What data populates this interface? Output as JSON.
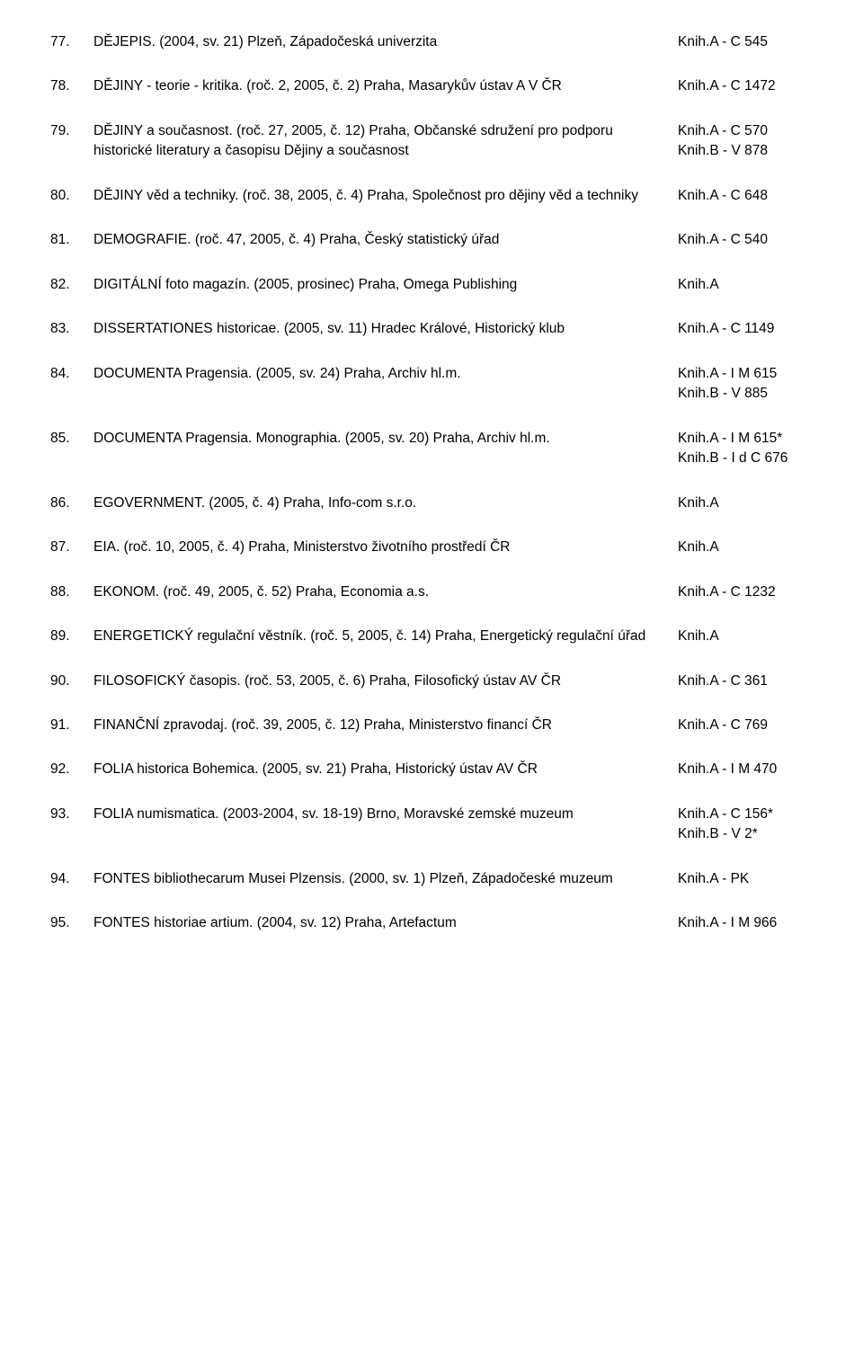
{
  "entries": [
    {
      "num": "77.",
      "desc": "DĚJEPIS. (2004, sv. 21) Plzeň, Západočeská univerzita",
      "loc": [
        "Knih.A - C 545"
      ]
    },
    {
      "num": "78.",
      "desc": "DĚJINY - teorie - kritika. (roč. 2, 2005, č. 2) Praha, Masarykův ústav A V ČR",
      "loc": [
        "Knih.A - C 1472"
      ]
    },
    {
      "num": "79.",
      "desc": "DĚJINY a současnost. (roč. 27, 2005, č. 12) Praha, Občanské sdružení pro podporu historické literatury a časopisu Dějiny a současnost",
      "loc": [
        "Knih.A - C 570",
        "Knih.B - V 878"
      ]
    },
    {
      "num": "80.",
      "desc": "DĚJINY věd a techniky. (roč. 38, 2005, č. 4) Praha, Společnost pro dějiny věd a techniky",
      "loc": [
        "Knih.A - C 648"
      ]
    },
    {
      "num": "81.",
      "desc": "DEMOGRAFIE. (roč. 47, 2005, č. 4) Praha, Český statistický úřad",
      "loc": [
        "Knih.A - C 540"
      ]
    },
    {
      "num": "82.",
      "desc": "DIGITÁLNÍ foto magazín. (2005, prosinec) Praha, Omega Publishing",
      "loc": [
        "Knih.A"
      ]
    },
    {
      "num": "83.",
      "desc": "DISSERTATIONES historicae. (2005, sv. 11) Hradec Králové, Historický klub",
      "loc": [
        "Knih.A - C 1149"
      ]
    },
    {
      "num": "84.",
      "desc": "DOCUMENTA Pragensia. (2005, sv. 24) Praha, Archiv hl.m.",
      "loc": [
        "Knih.A - I M 615",
        "Knih.B - V 885"
      ]
    },
    {
      "num": "85.",
      "desc": "DOCUMENTA Pragensia. Monographia. (2005, sv. 20) Praha, Archiv hl.m.",
      "loc": [
        "Knih.A - I M 615*",
        "Knih.B - I d C 676"
      ]
    },
    {
      "num": "86.",
      "desc": "EGOVERNMENT. (2005, č. 4) Praha, Info-com s.r.o.",
      "loc": [
        "Knih.A"
      ]
    },
    {
      "num": "87.",
      "desc": "EIA. (roč. 10, 2005, č. 4) Praha, Ministerstvo životního prostředí ČR",
      "loc": [
        "Knih.A"
      ]
    },
    {
      "num": "88.",
      "desc": "EKONOM. (roč. 49, 2005, č. 52) Praha, Economia a.s.",
      "loc": [
        "Knih.A - C 1232"
      ]
    },
    {
      "num": "89.",
      "desc": "ENERGETICKÝ regulační věstník. (roč. 5, 2005, č. 14) Praha, Energetický regulační úřad",
      "loc": [
        "Knih.A"
      ]
    },
    {
      "num": "90.",
      "desc": "FILOSOFICKÝ časopis. (roč. 53, 2005, č. 6) Praha, Filosofický ústav AV ČR",
      "loc": [
        "Knih.A - C 361"
      ]
    },
    {
      "num": "91.",
      "desc": "FINANČNÍ zpravodaj. (roč. 39, 2005, č. 12) Praha, Ministerstvo financí ČR",
      "loc": [
        "Knih.A - C 769"
      ]
    },
    {
      "num": "92.",
      "desc": "FOLIA historica Bohemica. (2005, sv. 21) Praha, Historický ústav AV ČR",
      "loc": [
        "Knih.A - I M 470"
      ]
    },
    {
      "num": "93.",
      "desc": "FOLIA numismatica. (2003-2004, sv. 18-19) Brno, Moravské zemské muzeum",
      "loc": [
        "Knih.A - C 156*",
        "Knih.B - V 2*"
      ]
    },
    {
      "num": "94.",
      "desc": "FONTES bibliothecarum Musei Plzensis. (2000, sv. 1) Plzeň, Západočeské muzeum",
      "loc": [
        "Knih.A - PK"
      ]
    },
    {
      "num": "95.",
      "desc": "FONTES historiae artium. (2004, sv. 12) Praha, Artefactum",
      "loc": [
        "Knih.A - I M 966"
      ]
    }
  ]
}
